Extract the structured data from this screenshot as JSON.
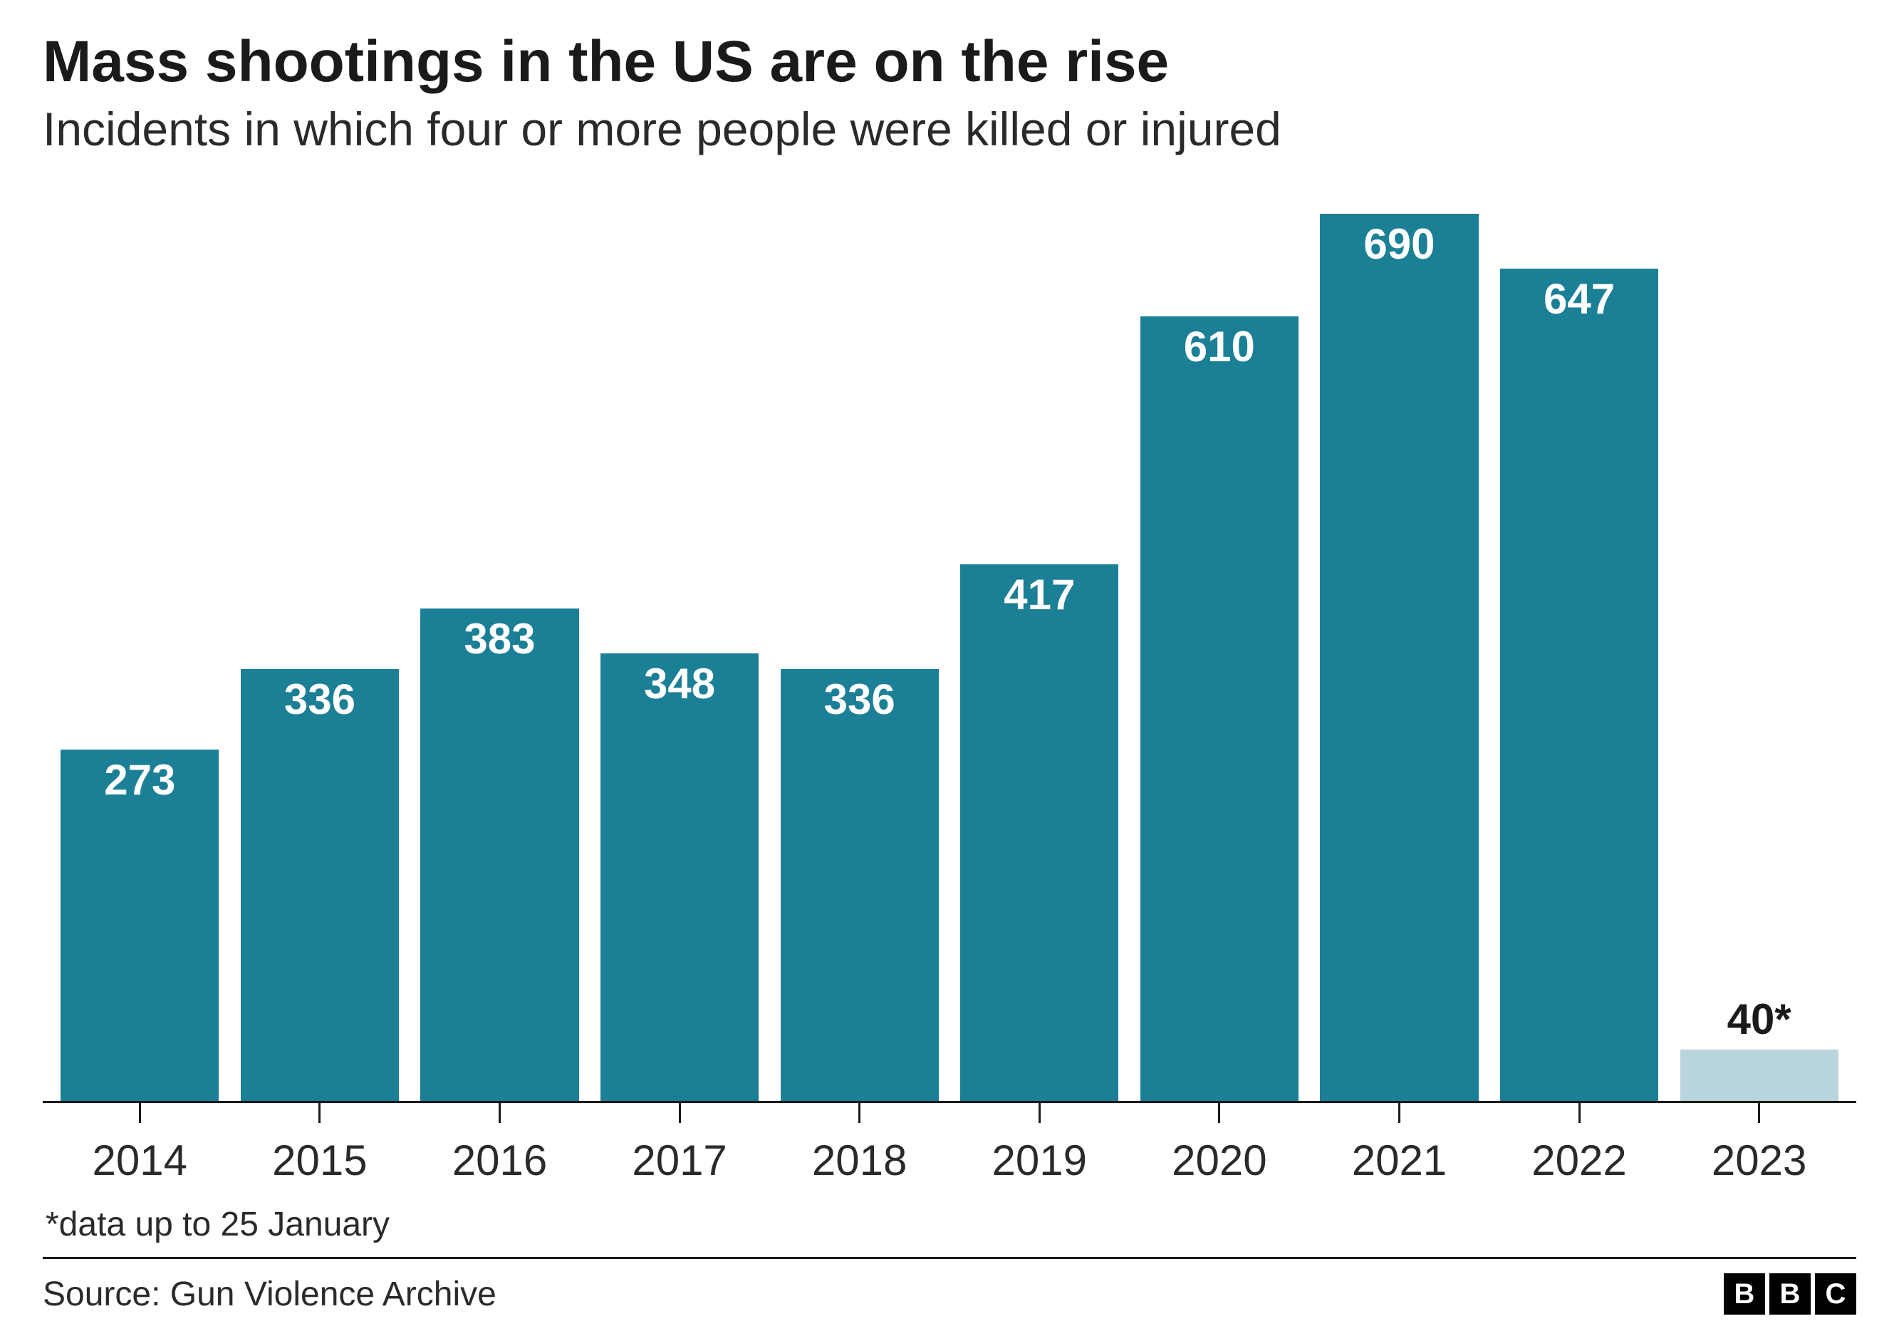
{
  "chart": {
    "type": "bar",
    "title": "Mass shootings in the US are on the rise",
    "subtitle": "Incidents in which four or more people were killed or injured",
    "title_fontsize": 82,
    "subtitle_fontsize": 66,
    "categories": [
      "2014",
      "2015",
      "2016",
      "2017",
      "2018",
      "2019",
      "2020",
      "2021",
      "2022",
      "2023"
    ],
    "values": [
      273,
      336,
      383,
      348,
      336,
      417,
      610,
      690,
      647,
      40
    ],
    "value_labels": [
      "273",
      "336",
      "383",
      "348",
      "336",
      "417",
      "610",
      "690",
      "647",
      "40*"
    ],
    "bar_colors": [
      "#1b7f96",
      "#1b7f96",
      "#1b7f96",
      "#1b7f96",
      "#1b7f96",
      "#1b7f96",
      "#1b7f96",
      "#1b7f96",
      "#1b7f96",
      "#b8d4dc"
    ],
    "label_inside": [
      true,
      true,
      true,
      true,
      true,
      true,
      true,
      true,
      true,
      false
    ],
    "ylim": [
      0,
      700
    ],
    "bar_width": 0.88,
    "background_color": "#ffffff",
    "axis_color": "#1a1a1a",
    "xlabel_fontsize": 60,
    "value_label_fontsize": 60,
    "value_label_color_inside": "#ffffff",
    "value_label_color_outside": "#1a1a1a"
  },
  "footnote": "*data up to 25 January",
  "source": "Source: Gun Violence Archive",
  "logo": {
    "blocks": [
      "B",
      "B",
      "C"
    ],
    "block_bg": "#000000",
    "block_fg": "#ffffff"
  }
}
